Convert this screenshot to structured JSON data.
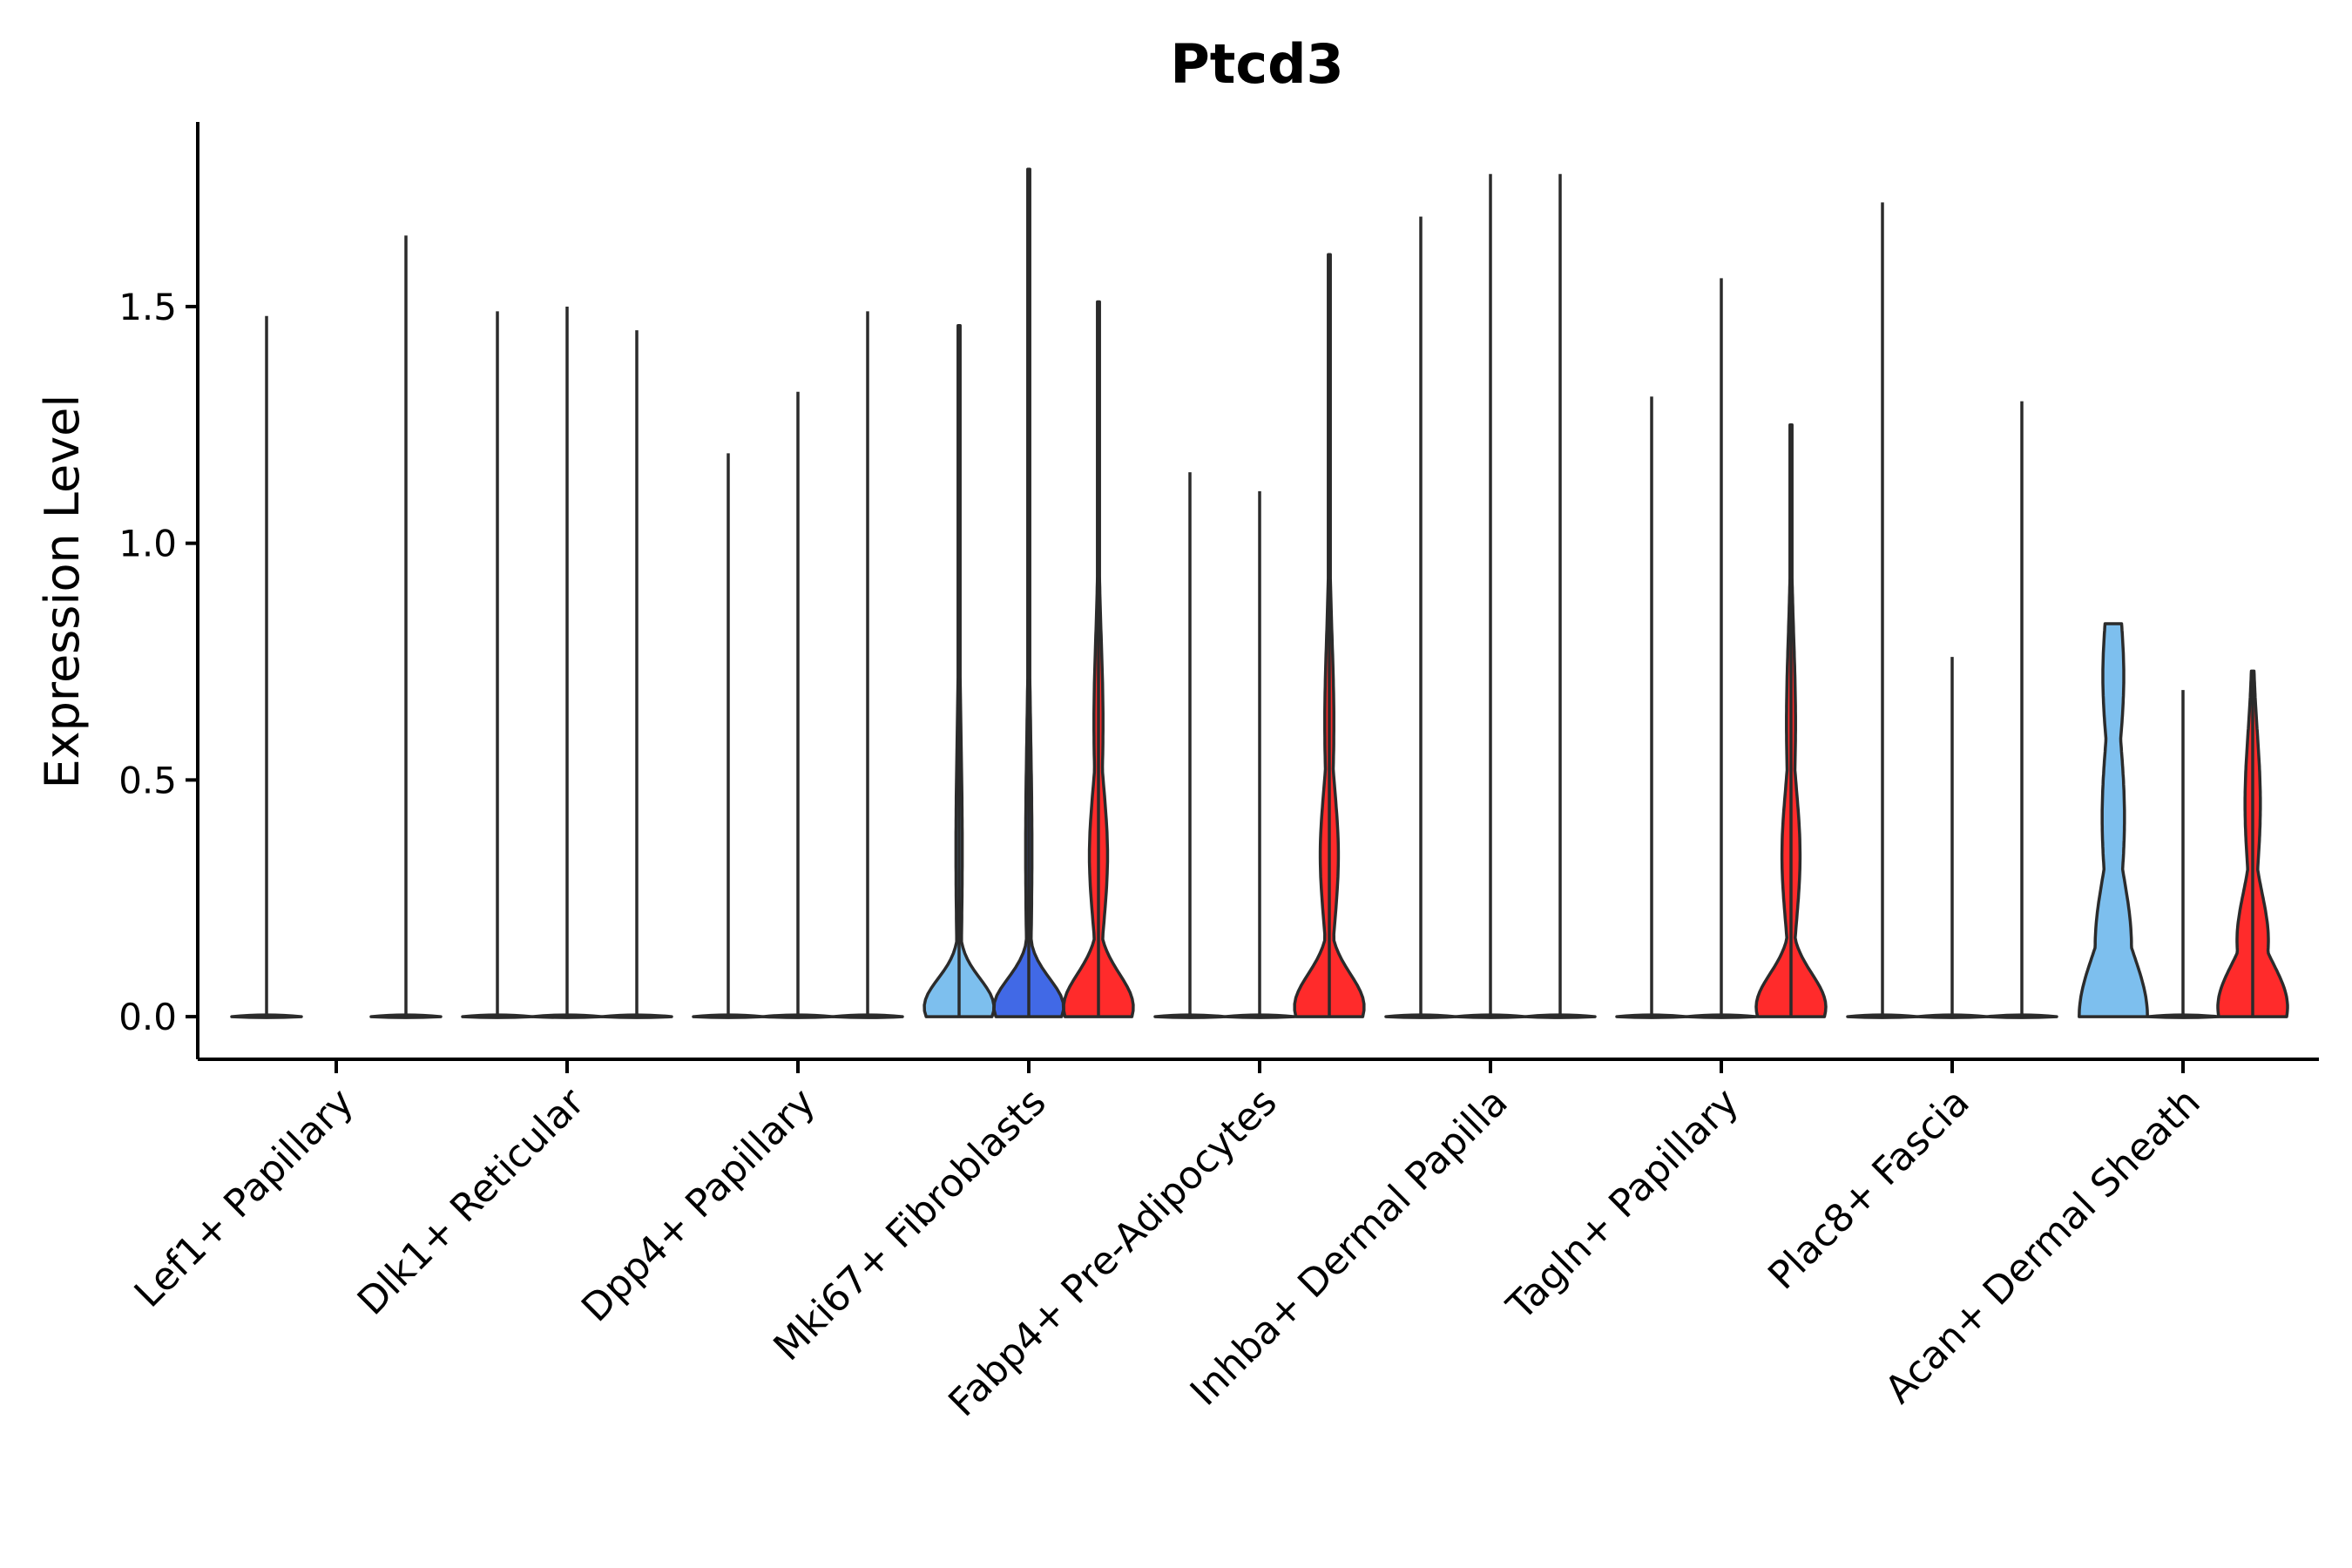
{
  "chart_data": {
    "type": "violin",
    "title": "Ptcd3",
    "ylabel": "Expression Level",
    "xlabel": "",
    "ylim": [
      -0.09,
      1.89
    ],
    "yticks": [
      0.0,
      0.5,
      1.0,
      1.5
    ],
    "ytick_labels": [
      "0.0",
      "0.5",
      "1.0",
      "1.5"
    ],
    "groups_per_category": 3,
    "colors": {
      "group1": "#7dbfee",
      "group2": "#4169e6",
      "group3": "#ff2b2b",
      "flat": "#ffffff"
    },
    "categories": [
      "Lef1+ Papillary",
      "Dlk1+ Reticular",
      "Dpp4+ Papillary",
      "Mki67+ Fibroblasts",
      "Fabp4+ Pre-Adipocytes",
      "Inhba+ Dermal Papilla",
      "Tagln+ Papillary",
      "Plac8+ Fascia",
      "Acan+ Dermal Sheath"
    ],
    "violins": [
      {
        "category": "Lef1+ Papillary",
        "group": 1,
        "max": 1.48,
        "shape": "flat"
      },
      {
        "category": "Lef1+ Papillary",
        "group": 3,
        "max": 1.65,
        "shape": "flat"
      },
      {
        "category": "Dlk1+ Reticular",
        "group": 1,
        "max": 1.49,
        "shape": "flat"
      },
      {
        "category": "Dlk1+ Reticular",
        "group": 2,
        "max": 1.5,
        "shape": "flat"
      },
      {
        "category": "Dlk1+ Reticular",
        "group": 3,
        "max": 1.45,
        "shape": "flat"
      },
      {
        "category": "Dpp4+ Papillary",
        "group": 1,
        "max": 1.19,
        "shape": "flat"
      },
      {
        "category": "Dpp4+ Papillary",
        "group": 2,
        "max": 1.32,
        "shape": "flat"
      },
      {
        "category": "Dpp4+ Papillary",
        "group": 3,
        "max": 1.49,
        "shape": "flat"
      },
      {
        "category": "Mki67+ Fibroblasts",
        "group": 1,
        "max": 1.46,
        "shape": "peak"
      },
      {
        "category": "Mki67+ Fibroblasts",
        "group": 2,
        "max": 1.79,
        "shape": "peak"
      },
      {
        "category": "Mki67+ Fibroblasts",
        "group": 3,
        "max": 1.51,
        "shape": "peak_mid"
      },
      {
        "category": "Fabp4+ Pre-Adipocytes",
        "group": 1,
        "max": 1.15,
        "shape": "flat"
      },
      {
        "category": "Fabp4+ Pre-Adipocytes",
        "group": 2,
        "max": 1.11,
        "shape": "flat"
      },
      {
        "category": "Fabp4+ Pre-Adipocytes",
        "group": 3,
        "max": 1.61,
        "shape": "peak_mid"
      },
      {
        "category": "Inhba+ Dermal Papilla",
        "group": 1,
        "max": 1.69,
        "shape": "flat"
      },
      {
        "category": "Inhba+ Dermal Papilla",
        "group": 2,
        "max": 1.78,
        "shape": "flat"
      },
      {
        "category": "Inhba+ Dermal Papilla",
        "group": 3,
        "max": 1.78,
        "shape": "flat"
      },
      {
        "category": "Tagln+ Papillary",
        "group": 1,
        "max": 1.31,
        "shape": "flat"
      },
      {
        "category": "Tagln+ Papillary",
        "group": 2,
        "max": 1.56,
        "shape": "flat"
      },
      {
        "category": "Tagln+ Papillary",
        "group": 3,
        "max": 1.25,
        "shape": "peak_mid"
      },
      {
        "category": "Plac8+ Fascia",
        "group": 1,
        "max": 1.72,
        "shape": "flat"
      },
      {
        "category": "Plac8+ Fascia",
        "group": 2,
        "max": 0.76,
        "shape": "flat"
      },
      {
        "category": "Plac8+ Fascia",
        "group": 3,
        "max": 1.3,
        "shape": "flat"
      },
      {
        "category": "Acan+ Dermal Sheath",
        "group": 1,
        "max": 0.83,
        "shape": "broad"
      },
      {
        "category": "Acan+ Dermal Sheath",
        "group": 2,
        "max": 0.69,
        "shape": "flat"
      },
      {
        "category": "Acan+ Dermal Sheath",
        "group": 3,
        "max": 0.73,
        "shape": "wide_mid"
      }
    ]
  }
}
